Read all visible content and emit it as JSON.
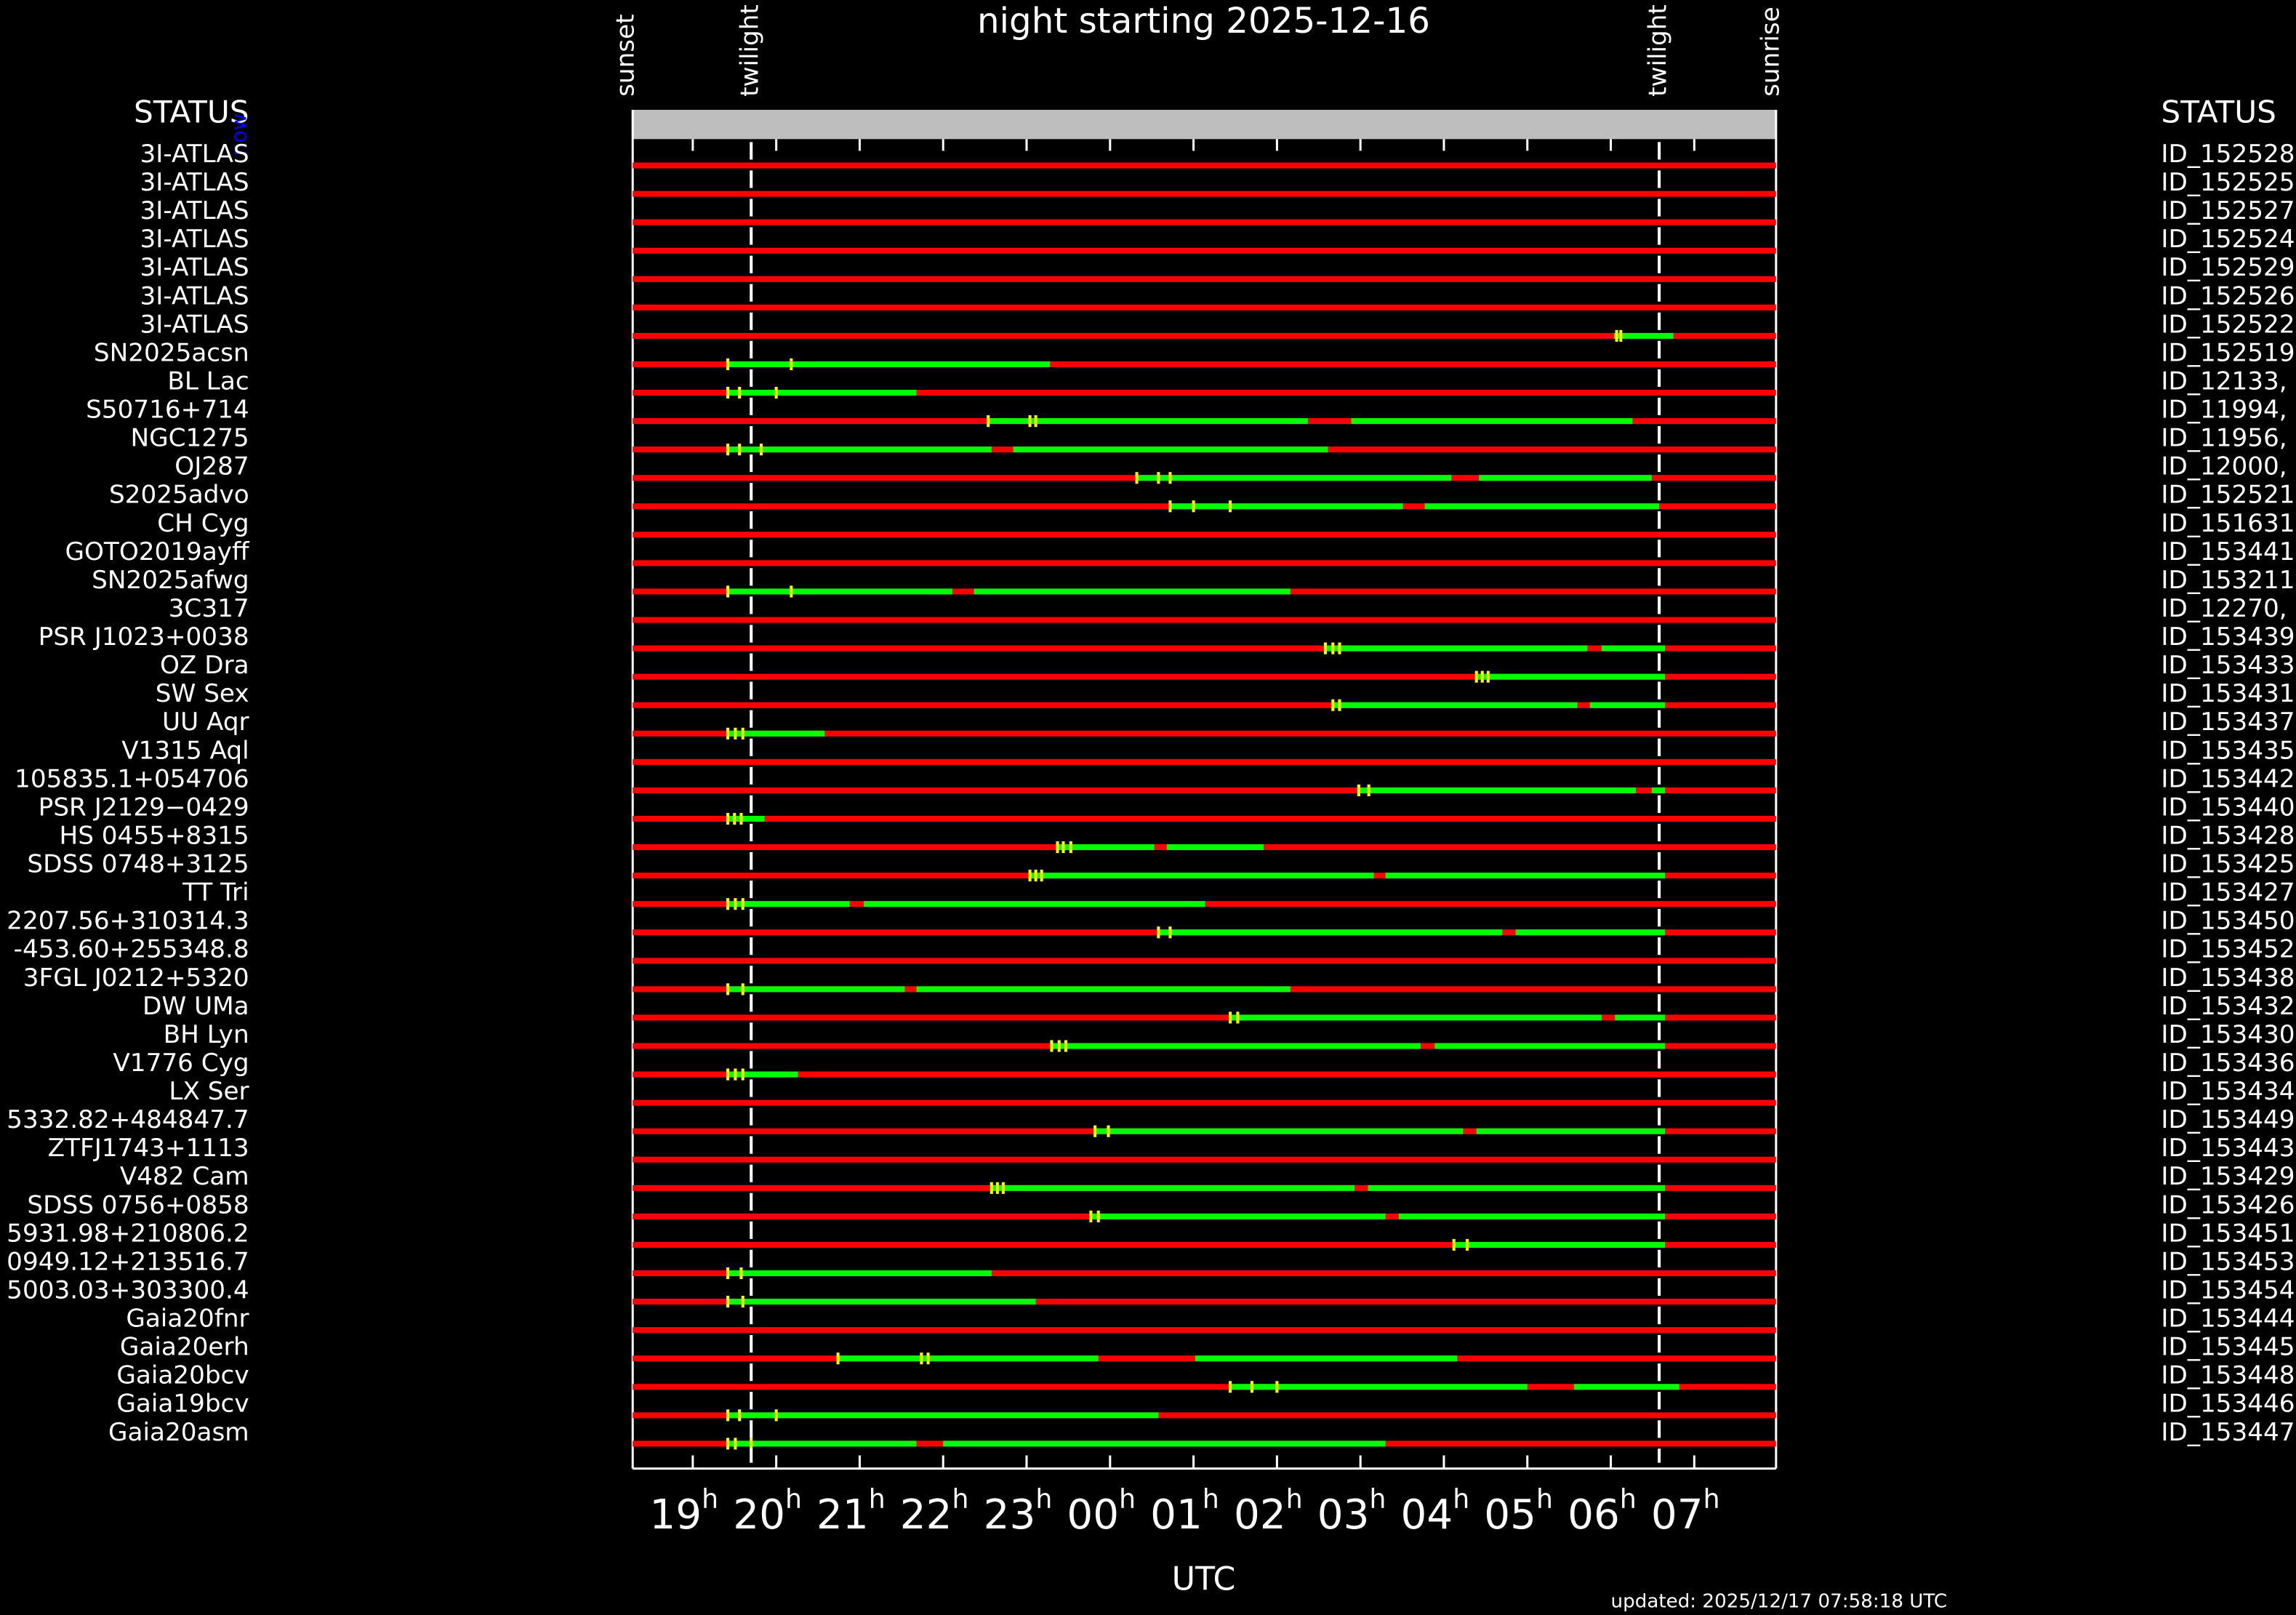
{
  "chart_data": {
    "type": "timeline",
    "title": "night starting 2025-12-16",
    "xlabel": "UTC",
    "updated": "updated: 2025/12/17 07:58:18 UTC",
    "status_left": "STATUS",
    "status_right": "STATUS",
    "now_label": "now",
    "xlim": [
      18.28,
      31.98
    ],
    "xticks": [
      19,
      20,
      21,
      22,
      23,
      {
        "value": 24,
        "label": "00"
      },
      {
        "value": 25,
        "label": "01"
      },
      {
        "value": 26,
        "label": "02"
      },
      {
        "value": 27,
        "label": "03"
      },
      {
        "value": 28,
        "label": "04"
      },
      {
        "value": 29,
        "label": "05"
      },
      {
        "value": 30,
        "label": "06"
      },
      {
        "value": 31,
        "label": "07"
      }
    ],
    "tick_suffix": "h",
    "events": [
      {
        "label": "sunset",
        "value": 18.21
      },
      {
        "label": "twilight",
        "value": 19.7
      },
      {
        "label": "twilight",
        "value": 30.58
      },
      {
        "label": "sunrise",
        "value": 31.93
      }
    ],
    "line_color": "#ff0000",
    "segment_color": "#00ff00",
    "marker_color": "#ffff00",
    "header_color": "#bebebe",
    "now_color": "#0000ff",
    "rows": [
      {
        "name": "3I-ATLAS",
        "id": "ID_152528",
        "segments": [],
        "marks": []
      },
      {
        "name": "3I-ATLAS",
        "id": "ID_152525",
        "segments": [],
        "marks": []
      },
      {
        "name": "3I-ATLAS",
        "id": "ID_152527",
        "segments": [],
        "marks": []
      },
      {
        "name": "3I-ATLAS",
        "id": "ID_152524",
        "segments": [],
        "marks": []
      },
      {
        "name": "3I-ATLAS",
        "id": "ID_152529",
        "segments": [],
        "marks": []
      },
      {
        "name": "3I-ATLAS",
        "id": "ID_152526",
        "segments": [],
        "marks": []
      },
      {
        "name": "3I-ATLAS",
        "id": "ID_152522",
        "segments": [
          [
            30.04,
            30.75
          ]
        ],
        "marks": [
          30.07,
          30.12
        ]
      },
      {
        "name": "SN2025acsn",
        "id": "ID_152519",
        "segments": [
          [
            19.42,
            23.28
          ]
        ],
        "marks": [
          19.42,
          20.18
        ]
      },
      {
        "name": "BL Lac",
        "id": "ID_12133,",
        "segments": [
          [
            19.42,
            21.68
          ]
        ],
        "marks": [
          19.42,
          19.56,
          20.0
        ]
      },
      {
        "name": "S50716+714",
        "id": "ID_11994,",
        "segments": [
          [
            22.54,
            26.37
          ],
          [
            26.89,
            30.26
          ]
        ],
        "marks": [
          22.54,
          23.04,
          23.11
        ]
      },
      {
        "name": "NGC1275",
        "id": "ID_11956,",
        "segments": [
          [
            19.42,
            22.58
          ],
          [
            22.84,
            26.61
          ]
        ],
        "marks": [
          19.42,
          19.56,
          19.82
        ]
      },
      {
        "name": "OJ287",
        "id": "ID_12000,",
        "segments": [
          [
            24.32,
            28.09
          ],
          [
            28.42,
            30.49
          ]
        ],
        "marks": [
          24.32,
          24.58,
          24.72
        ]
      },
      {
        "name": "S2025advo",
        "id": "ID_152521",
        "segments": [
          [
            24.72,
            27.51
          ],
          [
            27.77,
            30.58
          ]
        ],
        "marks": [
          24.72,
          25.0,
          25.44
        ]
      },
      {
        "name": "CH Cyg",
        "id": "ID_151631",
        "segments": [],
        "marks": []
      },
      {
        "name": "GOTO2019ayff",
        "id": "ID_153441",
        "segments": [],
        "marks": []
      },
      {
        "name": "SN2025afwg",
        "id": "ID_153211",
        "segments": [
          [
            19.42,
            22.11
          ],
          [
            22.37,
            26.16
          ]
        ],
        "marks": [
          19.42,
          20.18
        ]
      },
      {
        "name": "3C317",
        "id": "ID_12270,",
        "segments": [],
        "marks": []
      },
      {
        "name": "PSR J1023+0038",
        "id": "ID_153439",
        "segments": [
          [
            26.58,
            29.72
          ],
          [
            29.89,
            30.65
          ]
        ],
        "marks": [
          26.58,
          26.67,
          26.75
        ]
      },
      {
        "name": "OZ Dra",
        "id": "ID_153433",
        "segments": [
          [
            28.39,
            30.65
          ]
        ],
        "marks": [
          28.39,
          28.46,
          28.53
        ]
      },
      {
        "name": "SW Sex",
        "id": "ID_153431",
        "segments": [
          [
            26.67,
            29.6
          ],
          [
            29.75,
            30.65
          ]
        ],
        "marks": [
          26.67,
          26.75
        ]
      },
      {
        "name": "UU Aqr",
        "id": "ID_153437",
        "segments": [
          [
            19.42,
            20.58
          ]
        ],
        "marks": [
          19.42,
          19.51,
          19.6
        ]
      },
      {
        "name": "V1315 Aql",
        "id": "ID_153435",
        "segments": [],
        "marks": []
      },
      {
        "name": "105835.1+054706",
        "id": "ID_153442",
        "segments": [
          [
            26.98,
            30.3
          ],
          [
            30.49,
            30.65
          ]
        ],
        "marks": [
          26.98,
          27.1
        ]
      },
      {
        "name": "PSR J2129−0429",
        "id": "ID_153440",
        "segments": [
          [
            19.42,
            19.86
          ]
        ],
        "marks": [
          19.42,
          19.5,
          19.58
        ]
      },
      {
        "name": "HS 0455+8315",
        "id": "ID_153428",
        "segments": [
          [
            23.37,
            24.53
          ],
          [
            24.68,
            25.84
          ]
        ],
        "marks": [
          23.37,
          23.44,
          23.53
        ]
      },
      {
        "name": "SDSS 0748+3125",
        "id": "ID_153425",
        "segments": [
          [
            23.04,
            27.16
          ],
          [
            27.3,
            30.65
          ]
        ],
        "marks": [
          23.04,
          23.11,
          23.18
        ]
      },
      {
        "name": "TT Tri",
        "id": "ID_153427",
        "segments": [
          [
            19.42,
            20.88
          ],
          [
            21.05,
            25.14
          ]
        ],
        "marks": [
          19.42,
          19.51,
          19.6
        ]
      },
      {
        "name": "2207.56+310314.3",
        "id": "ID_153450",
        "segments": [
          [
            24.58,
            28.7
          ],
          [
            28.86,
            30.65
          ]
        ],
        "marks": [
          24.58,
          24.72
        ]
      },
      {
        "name": "-453.60+255348.8",
        "id": "ID_153452",
        "segments": [],
        "marks": []
      },
      {
        "name": "3FGL J0212+5320",
        "id": "ID_153438",
        "segments": [
          [
            19.42,
            21.54
          ],
          [
            21.68,
            26.16
          ]
        ],
        "marks": [
          19.42,
          19.6
        ]
      },
      {
        "name": "DW UMa",
        "id": "ID_153432",
        "segments": [
          [
            25.44,
            29.89
          ],
          [
            30.05,
            30.65
          ]
        ],
        "marks": [
          25.44,
          25.53
        ]
      },
      {
        "name": "BH Lyn",
        "id": "ID_153430",
        "segments": [
          [
            23.3,
            27.72
          ],
          [
            27.89,
            30.65
          ]
        ],
        "marks": [
          23.3,
          23.39,
          23.47
        ]
      },
      {
        "name": "V1776 Cyg",
        "id": "ID_153436",
        "segments": [
          [
            19.42,
            20.26
          ]
        ],
        "marks": [
          19.42,
          19.51,
          19.6
        ]
      },
      {
        "name": "LX Ser",
        "id": "ID_153434",
        "segments": [],
        "marks": []
      },
      {
        "name": "5332.82+484847.7",
        "id": "ID_153449",
        "segments": [
          [
            23.82,
            28.23
          ],
          [
            28.39,
            30.65
          ]
        ],
        "marks": [
          23.82,
          23.98
        ]
      },
      {
        "name": "ZTFJ1743+1113",
        "id": "ID_153443",
        "segments": [],
        "marks": []
      },
      {
        "name": "V482 Cam",
        "id": "ID_153429",
        "segments": [
          [
            22.58,
            26.93
          ],
          [
            27.09,
            30.65
          ]
        ],
        "marks": [
          22.58,
          22.65,
          22.72
        ]
      },
      {
        "name": "SDSS 0756+0858",
        "id": "ID_153426",
        "segments": [
          [
            23.77,
            27.3
          ],
          [
            27.46,
            30.65
          ]
        ],
        "marks": [
          23.77,
          23.86
        ]
      },
      {
        "name": "5931.98+210806.2",
        "id": "ID_153451",
        "segments": [
          [
            28.12,
            30.65
          ]
        ],
        "marks": [
          28.12,
          28.28
        ]
      },
      {
        "name": "0949.12+213516.7",
        "id": "ID_153453",
        "segments": [
          [
            19.42,
            22.58
          ]
        ],
        "marks": [
          19.42,
          19.58
        ]
      },
      {
        "name": "5003.03+303300.4",
        "id": "ID_153454",
        "segments": [
          [
            19.42,
            23.11
          ]
        ],
        "marks": [
          19.42,
          19.6
        ]
      },
      {
        "name": "Gaia20fnr",
        "id": "ID_153444",
        "segments": [],
        "marks": []
      },
      {
        "name": "Gaia20erh",
        "id": "ID_153445",
        "segments": [
          [
            20.74,
            23.86
          ],
          [
            25.02,
            28.16
          ]
        ],
        "marks": [
          20.74,
          21.74,
          21.82
        ]
      },
      {
        "name": "Gaia20bcv",
        "id": "ID_153448",
        "segments": [
          [
            25.44,
            29.0
          ],
          [
            29.56,
            30.82
          ]
        ],
        "marks": [
          25.44,
          25.7,
          26.0
        ]
      },
      {
        "name": "Gaia19bcv",
        "id": "ID_153446",
        "segments": [
          [
            19.42,
            24.58
          ]
        ],
        "marks": [
          19.42,
          19.56,
          20.0
        ]
      },
      {
        "name": "Gaia20asm",
        "id": "ID_153447",
        "segments": [
          [
            19.42,
            21.68
          ],
          [
            22.0,
            27.3
          ]
        ],
        "marks": [
          19.42,
          19.51,
          19.7
        ]
      }
    ]
  }
}
